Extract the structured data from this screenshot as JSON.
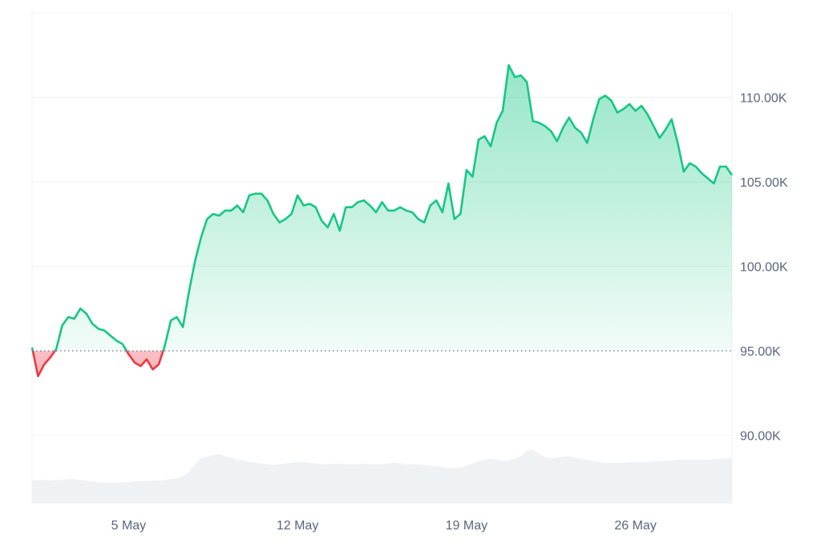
{
  "chart_data": {
    "type": "area",
    "title": "",
    "xlabel": "",
    "ylabel": "",
    "x_tick_labels": [
      "5 May",
      "12 May",
      "19 May",
      "26 May"
    ],
    "y_tick_labels": [
      "90.00K",
      "95.00K",
      "100.00K",
      "105.00K",
      "110.00K"
    ],
    "y_ticks": [
      90000,
      95000,
      100000,
      105000,
      110000
    ],
    "ylim": [
      86000,
      115000
    ],
    "xlim": [
      "2025-05-01",
      "2025-05-30"
    ],
    "baseline": 95000,
    "grid": true,
    "colors": {
      "above": "#16c784",
      "below": "#ea3943",
      "volume": "#eff2f5",
      "grid": "#eff2f5",
      "baseline": "#58667e"
    },
    "series": [
      {
        "x": [
          "2025-05-01",
          "2025-05-01T06",
          "2025-05-01T12",
          "2025-05-01T18",
          "2025-05-02",
          "2025-05-02T06",
          "2025-05-02T12",
          "2025-05-02T18",
          "2025-05-03",
          "2025-05-03T06",
          "2025-05-03T12",
          "2025-05-03T18",
          "2025-05-04",
          "2025-05-04T06",
          "2025-05-04T12",
          "2025-05-04T18",
          "2025-05-05",
          "2025-05-05T06",
          "2025-05-05T12",
          "2025-05-05T18",
          "2025-05-06",
          "2025-05-06T06",
          "2025-05-06T12",
          "2025-05-06T18",
          "2025-05-07",
          "2025-05-07T06",
          "2025-05-07T12",
          "2025-05-07T18",
          "2025-05-08",
          "2025-05-08T06",
          "2025-05-08T12",
          "2025-05-08T18",
          "2025-05-09",
          "2025-05-09T06",
          "2025-05-09T12",
          "2025-05-09T18",
          "2025-05-10",
          "2025-05-10T06",
          "2025-05-10T12",
          "2025-05-10T18",
          "2025-05-11",
          "2025-05-11T06",
          "2025-05-11T12",
          "2025-05-11T18",
          "2025-05-12",
          "2025-05-12T06",
          "2025-05-12T12",
          "2025-05-12T18",
          "2025-05-13",
          "2025-05-13T06",
          "2025-05-13T12",
          "2025-05-13T18",
          "2025-05-14",
          "2025-05-14T06",
          "2025-05-14T12",
          "2025-05-14T18",
          "2025-05-15",
          "2025-05-15T06",
          "2025-05-15T12",
          "2025-05-15T18",
          "2025-05-16",
          "2025-05-16T06",
          "2025-05-16T12",
          "2025-05-16T18",
          "2025-05-17",
          "2025-05-17T06",
          "2025-05-17T12",
          "2025-05-17T18",
          "2025-05-18",
          "2025-05-18T06",
          "2025-05-18T12",
          "2025-05-18T18",
          "2025-05-19",
          "2025-05-19T06",
          "2025-05-19T12",
          "2025-05-19T18",
          "2025-05-20",
          "2025-05-20T06",
          "2025-05-20T12",
          "2025-05-20T18",
          "2025-05-21",
          "2025-05-21T06",
          "2025-05-21T12",
          "2025-05-21T18",
          "2025-05-22",
          "2025-05-22T06",
          "2025-05-22T12",
          "2025-05-22T18",
          "2025-05-23",
          "2025-05-23T06",
          "2025-05-23T12",
          "2025-05-23T18",
          "2025-05-24",
          "2025-05-24T06",
          "2025-05-24T12",
          "2025-05-24T18",
          "2025-05-25",
          "2025-05-25T06",
          "2025-05-25T12",
          "2025-05-25T18",
          "2025-05-26",
          "2025-05-26T06",
          "2025-05-26T12",
          "2025-05-26T18",
          "2025-05-27",
          "2025-05-27T06",
          "2025-05-27T12",
          "2025-05-27T18",
          "2025-05-28",
          "2025-05-28T06",
          "2025-05-28T12",
          "2025-05-28T18",
          "2025-05-29",
          "2025-05-29T06",
          "2025-05-29T12",
          "2025-05-29T18",
          "2025-05-30"
        ],
        "y": [
          95200,
          93500,
          94200,
          94600,
          95100,
          96500,
          97000,
          96900,
          97500,
          97200,
          96600,
          96300,
          96200,
          95900,
          95600,
          95400,
          94800,
          94300,
          94100,
          94500,
          93900,
          94200,
          95300,
          96800,
          97000,
          96400,
          98500,
          100300,
          101700,
          102800,
          103100,
          103000,
          103300,
          103300,
          103600,
          103200,
          104200,
          104300,
          104300,
          103900,
          103100,
          102600,
          102800,
          103100,
          104200,
          103600,
          103700,
          103500,
          102700,
          102300,
          103100,
          102100,
          103500,
          103500,
          103800,
          103900,
          103600,
          103200,
          103800,
          103300,
          103300,
          103500,
          103300,
          103200,
          102800,
          102600,
          103600,
          103900,
          103200,
          104900,
          102800,
          103100,
          105700,
          105300,
          107500,
          107700,
          107100,
          108500,
          109200,
          111900,
          111200,
          111300,
          110900,
          108600,
          108500,
          108300,
          108000,
          107400,
          108200,
          108800,
          108200,
          107900,
          107300,
          108700,
          109900,
          110100,
          109800,
          109100,
          109300,
          109600,
          109200,
          109500,
          109000,
          108300,
          107600,
          108100,
          108700,
          107300,
          105600,
          106100,
          105900,
          105500,
          105200,
          104900,
          105900,
          105900,
          105400
        ]
      }
    ],
    "volume": [
      30,
      31,
      31,
      30,
      31,
      31,
      32,
      32,
      31,
      30,
      29,
      28,
      27,
      27,
      27,
      28,
      28,
      29,
      29,
      30,
      30,
      30,
      31,
      32,
      33,
      36,
      42,
      52,
      60,
      62,
      64,
      66,
      63,
      61,
      58,
      57,
      55,
      54,
      53,
      52,
      51,
      52,
      53,
      54,
      55,
      55,
      54,
      53,
      52,
      52,
      53,
      53,
      52,
      52,
      52,
      53,
      52,
      52,
      52,
      53,
      54,
      53,
      52,
      52,
      52,
      51,
      50,
      49,
      48,
      47,
      47,
      48,
      50,
      53,
      56,
      58,
      60,
      58,
      56,
      57,
      60,
      63,
      70,
      72,
      66,
      62,
      60,
      61,
      62,
      63,
      61,
      59,
      58,
      56,
      55,
      54,
      54,
      54,
      54,
      55,
      55,
      55,
      55,
      56,
      56,
      57,
      57,
      58,
      58,
      58,
      58,
      58,
      58,
      59,
      59,
      60,
      60
    ]
  }
}
